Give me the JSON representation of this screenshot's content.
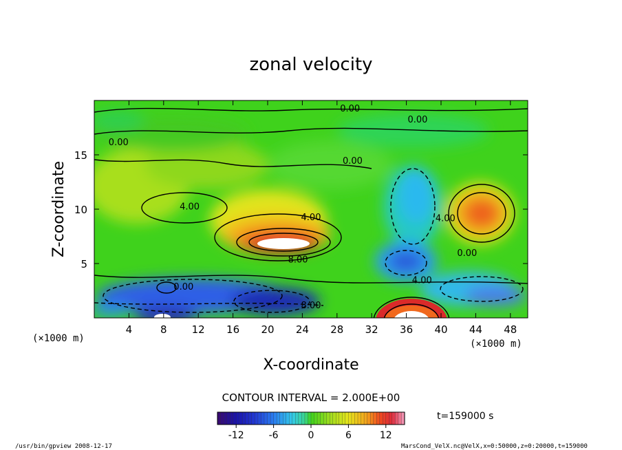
{
  "chart_data": {
    "type": "heatmap",
    "title": "zonal velocity",
    "xlabel": "X-coordinate",
    "ylabel": "Z-coordinate",
    "x_unit": "(×1000 m)",
    "x_ticks": [
      4,
      8,
      12,
      16,
      20,
      24,
      28,
      32,
      36,
      40,
      44,
      48
    ],
    "y_ticks": [
      5,
      10,
      15
    ],
    "xlim": [
      0,
      50
    ],
    "ylim": [
      0,
      20
    ],
    "contour_interval_text": "CONTOUR INTERVAL = 2.000E+00",
    "contour_labels": [
      {
        "text": "0.00",
        "x": 29.5,
        "z": 19.3
      },
      {
        "text": "0.00",
        "x": 37.3,
        "z": 18.3
      },
      {
        "text": "0.00",
        "x": 2.8,
        "z": 16.2
      },
      {
        "text": "0.00",
        "x": 29.8,
        "z": 14.5
      },
      {
        "text": "4.00",
        "x": 11.0,
        "z": 10.3
      },
      {
        "text": "4.00",
        "x": 25.0,
        "z": 9.3
      },
      {
        "text": "4.00",
        "x": 40.5,
        "z": 9.2
      },
      {
        "text": "8.00",
        "x": 23.5,
        "z": 5.4
      },
      {
        "text": "0.00",
        "x": 43.0,
        "z": 6.0
      },
      {
        "text": "4.00",
        "x": 37.8,
        "z": 3.5
      },
      {
        "text": "0.00",
        "x": 10.3,
        "z": 2.9
      },
      {
        "text": "8.00",
        "x": 25.0,
        "z": 1.2
      }
    ],
    "field_features": [
      {
        "kind": "max",
        "x": 23,
        "z": 7,
        "value": 14
      },
      {
        "kind": "max",
        "x": 37,
        "z": 0.5,
        "value": 14
      },
      {
        "kind": "max",
        "x": 44.5,
        "z": 9.5,
        "value": 8
      },
      {
        "kind": "min",
        "x": 21,
        "z": 1.5,
        "value": -10
      },
      {
        "kind": "min",
        "x": 8,
        "z": 0.3,
        "value": -12
      },
      {
        "kind": "min",
        "x": 36,
        "z": 5.5,
        "value": -8
      },
      {
        "kind": "min",
        "x": 36.5,
        "z": 11.5,
        "value": -6
      }
    ],
    "colorbar": {
      "min": -15,
      "max": 15,
      "ticks": [
        -12,
        -6,
        0,
        6,
        12
      ]
    }
  },
  "time_text": "t=159000 s",
  "footer_left": "/usr/bin/gpview  2008-12-17",
  "footer_right": "MarsCond_VelX.nc@VelX,x=0:50000,z=0:20000,t=159000"
}
